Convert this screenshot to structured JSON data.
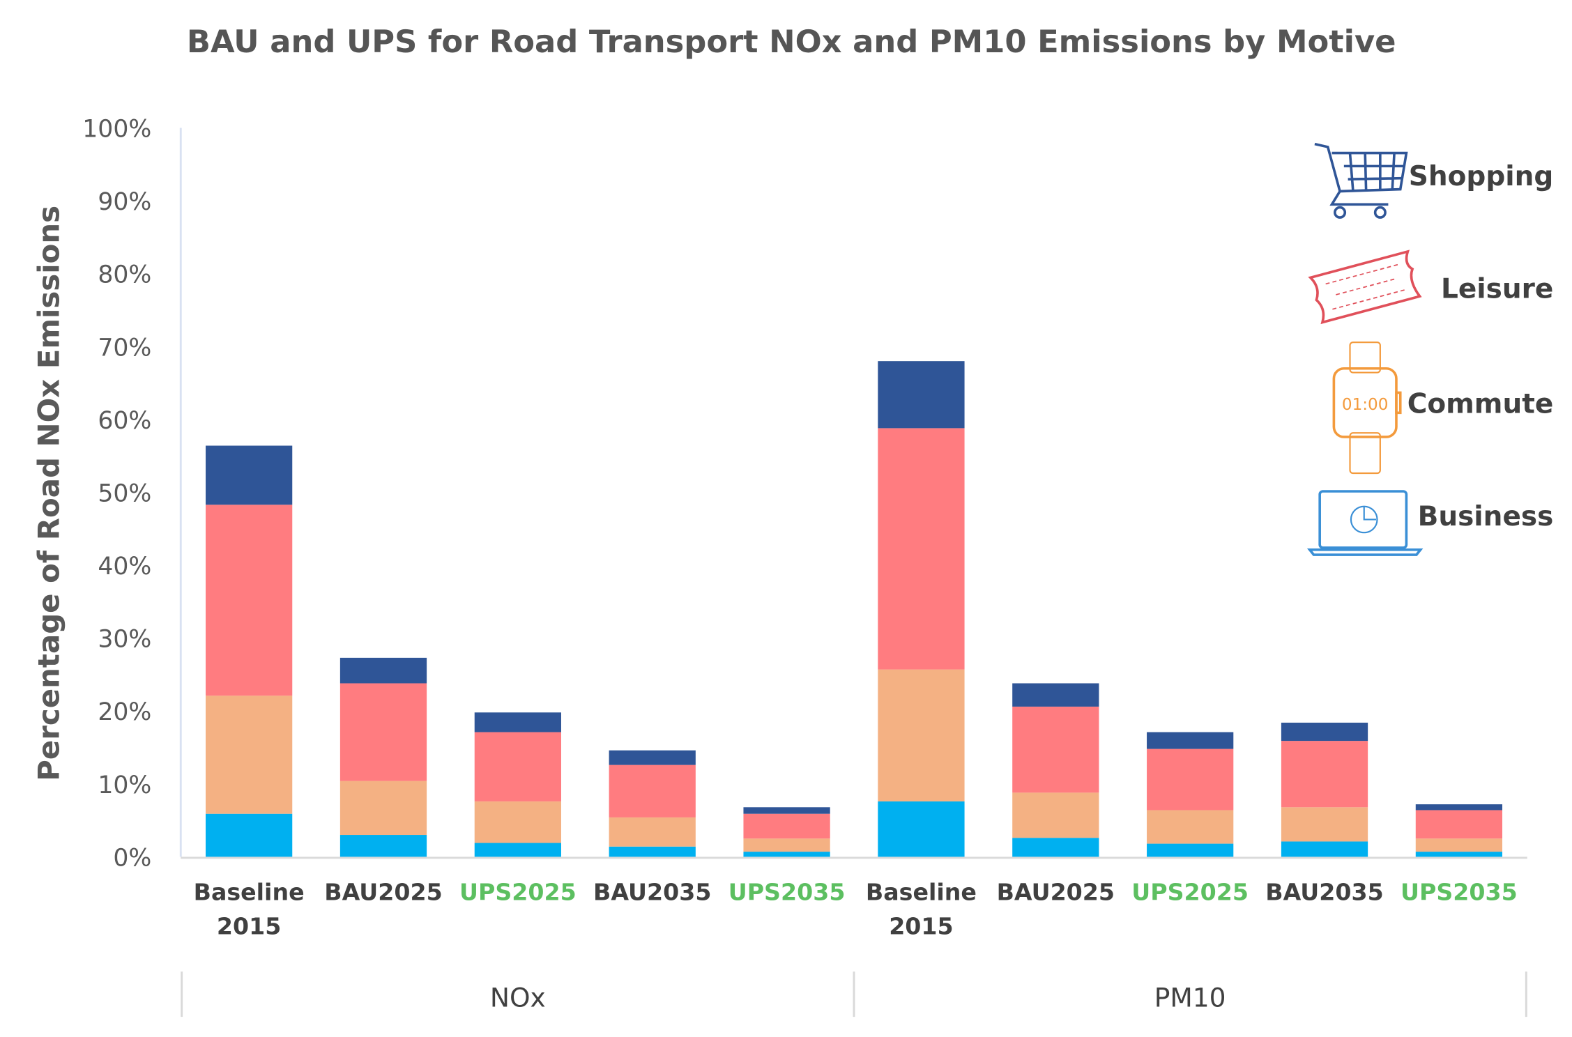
{
  "chart_data": {
    "type": "bar",
    "stacked": true,
    "title": "BAU and UPS for Road Transport NOx and PM10 Emissions by Motive",
    "xlabel": "",
    "ylabel": "Percentage of Road NOx Emissions",
    "ylim": [
      0,
      100
    ],
    "yticks": [
      "0%",
      "10%",
      "20%",
      "30%",
      "40%",
      "50%",
      "60%",
      "70%",
      "80%",
      "90%",
      "100%"
    ],
    "categories": [
      {
        "line1": "Baseline",
        "line2": "2015",
        "scenario": "BAU"
      },
      {
        "line1": "BAU2025",
        "line2": "",
        "scenario": "BAU"
      },
      {
        "line1": "UPS2025",
        "line2": "",
        "scenario": "UPS"
      },
      {
        "line1": "BAU2035",
        "line2": "",
        "scenario": "BAU"
      },
      {
        "line1": "UPS2035",
        "line2": "",
        "scenario": "UPS"
      },
      {
        "line1": "Baseline",
        "line2": "2015",
        "scenario": "BAU"
      },
      {
        "line1": "BAU2025",
        "line2": "",
        "scenario": "BAU"
      },
      {
        "line1": "UPS2025",
        "line2": "",
        "scenario": "UPS"
      },
      {
        "line1": "BAU2035",
        "line2": "",
        "scenario": "BAU"
      },
      {
        "line1": "UPS2035",
        "line2": "",
        "scenario": "UPS"
      }
    ],
    "groups": [
      {
        "label": "NOx",
        "span": 5
      },
      {
        "label": "PM10",
        "span": 5
      }
    ],
    "series": [
      {
        "name": "Business",
        "color": "#00b0f0",
        "values": [
          5.9,
          3.0,
          1.9,
          1.4,
          0.7,
          7.6,
          2.6,
          1.8,
          2.1,
          0.7
        ]
      },
      {
        "name": "Commute",
        "color": "#f4b183",
        "values": [
          16.2,
          7.4,
          5.7,
          4.0,
          1.8,
          18.1,
          6.2,
          4.6,
          4.7,
          1.8
        ]
      },
      {
        "name": "Leisure",
        "color": "#ff7c80",
        "values": [
          26.2,
          13.4,
          9.5,
          7.2,
          3.4,
          33.1,
          11.8,
          8.4,
          9.1,
          3.9
        ]
      },
      {
        "name": "Shopping",
        "color": "#2f5597",
        "values": [
          8.1,
          3.5,
          2.7,
          2.0,
          0.9,
          9.2,
          3.2,
          2.3,
          2.5,
          0.8
        ]
      }
    ],
    "legend": {
      "placement": "right",
      "items": [
        {
          "label": "Shopping",
          "icon": "shopping-cart-icon",
          "color": "#2f5597"
        },
        {
          "label": "Leisure",
          "icon": "ticket-icon",
          "color": "#e0505a"
        },
        {
          "label": "Commute",
          "icon": "watch-icon",
          "color": "#f39a3c"
        },
        {
          "label": "Business",
          "icon": "laptop-chart-icon",
          "color": "#3a8fd6"
        }
      ]
    },
    "watch_text": "01:00",
    "label_colors": {
      "BAU": "#404040",
      "UPS": "#5cbf60"
    },
    "grid": false
  }
}
